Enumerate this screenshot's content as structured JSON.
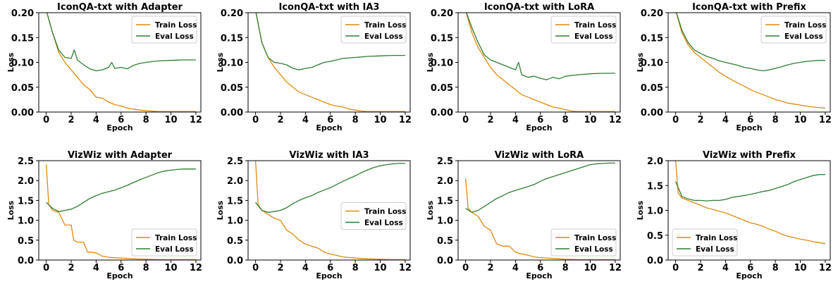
{
  "chart_data": [
    {
      "type": "line",
      "title": "IconQA-txt with Adapter",
      "xlabel": "Epoch",
      "ylabel": "Loss",
      "xlim": [
        -0.6,
        12.4
      ],
      "ylim": [
        0,
        0.2
      ],
      "xticks": [
        "0",
        "2",
        "4",
        "6",
        "8",
        "10",
        "12"
      ],
      "yticks": [
        "0.00",
        "0.05",
        "0.10",
        "0.15",
        "0.20"
      ],
      "legend_position": "upper-right",
      "series": [
        {
          "name": "Train Loss",
          "color": "#e08a0b",
          "x": [
            0,
            0.5,
            1,
            1.5,
            2,
            2.5,
            3,
            3.5,
            4,
            4.5,
            5,
            5.5,
            6,
            6.5,
            7,
            7.5,
            8,
            8.5,
            9,
            10,
            11,
            12
          ],
          "y": [
            0.205,
            0.16,
            0.12,
            0.1,
            0.085,
            0.07,
            0.055,
            0.045,
            0.03,
            0.028,
            0.02,
            0.015,
            0.012,
            0.008,
            0.006,
            0.004,
            0.003,
            0.002,
            0.001,
            0.001,
            0.001,
            0.001
          ]
        },
        {
          "name": "Eval Loss",
          "color": "#2e7d32",
          "x": [
            0,
            0.5,
            1,
            1.5,
            2,
            2.25,
            2.5,
            3,
            3.5,
            4,
            4.5,
            5,
            5.25,
            5.5,
            6,
            6.5,
            7,
            7.5,
            8,
            9,
            10,
            11,
            12
          ],
          "y": [
            0.205,
            0.16,
            0.125,
            0.11,
            0.108,
            0.125,
            0.105,
            0.095,
            0.087,
            0.083,
            0.085,
            0.09,
            0.1,
            0.088,
            0.09,
            0.087,
            0.094,
            0.098,
            0.1,
            0.103,
            0.104,
            0.105,
            0.105
          ]
        }
      ]
    },
    {
      "type": "line",
      "title": "IconQA-txt with IA3",
      "xlabel": "Epoch",
      "ylabel": "Loss",
      "xlim": [
        -0.6,
        12.4
      ],
      "ylim": [
        0,
        0.2
      ],
      "xticks": [
        "0",
        "2",
        "4",
        "6",
        "8",
        "10",
        "12"
      ],
      "yticks": [
        "0.00",
        "0.05",
        "0.10",
        "0.15",
        "0.20"
      ],
      "legend_position": "upper-right",
      "series": [
        {
          "name": "Train Loss",
          "color": "#e08a0b",
          "x": [
            0,
            0.5,
            1,
            1.5,
            2,
            2.5,
            3,
            3.5,
            4,
            4.5,
            5,
            5.5,
            6,
            6.5,
            7,
            7.5,
            8,
            8.5,
            9,
            10,
            11,
            12
          ],
          "y": [
            0.205,
            0.14,
            0.11,
            0.09,
            0.075,
            0.06,
            0.05,
            0.04,
            0.035,
            0.03,
            0.025,
            0.02,
            0.015,
            0.012,
            0.01,
            0.006,
            0.004,
            0.002,
            0.001,
            0.001,
            0.001,
            0.001
          ]
        },
        {
          "name": "Eval Loss",
          "color": "#2e7d32",
          "x": [
            0,
            0.5,
            1,
            1.5,
            2,
            2.5,
            3,
            3.5,
            4,
            4.5,
            5,
            5.5,
            6,
            6.5,
            7,
            8,
            9,
            10,
            11,
            12
          ],
          "y": [
            0.205,
            0.14,
            0.11,
            0.1,
            0.098,
            0.095,
            0.088,
            0.085,
            0.088,
            0.09,
            0.095,
            0.1,
            0.102,
            0.105,
            0.108,
            0.11,
            0.112,
            0.113,
            0.114,
            0.114
          ]
        }
      ]
    },
    {
      "type": "line",
      "title": "IconQA-txt with LoRA",
      "xlabel": "Epoch",
      "ylabel": "Loss",
      "xlim": [
        -0.6,
        12.4
      ],
      "ylim": [
        0,
        0.2
      ],
      "xticks": [
        "0",
        "2",
        "4",
        "6",
        "8",
        "10",
        "12"
      ],
      "yticks": [
        "0.00",
        "0.05",
        "0.10",
        "0.15",
        "0.20"
      ],
      "legend_position": "upper-right",
      "series": [
        {
          "name": "Train Loss",
          "color": "#e08a0b",
          "x": [
            0,
            0.5,
            1,
            1.5,
            2,
            2.5,
            3,
            3.5,
            4,
            4.5,
            5,
            5.5,
            6,
            6.5,
            7,
            7.5,
            8,
            8.5,
            9,
            10,
            11,
            12
          ],
          "y": [
            0.205,
            0.16,
            0.13,
            0.11,
            0.09,
            0.075,
            0.065,
            0.055,
            0.045,
            0.035,
            0.03,
            0.025,
            0.02,
            0.015,
            0.01,
            0.008,
            0.005,
            0.002,
            0.001,
            0.001,
            0.001,
            0.001
          ]
        },
        {
          "name": "Eval Loss",
          "color": "#2e7d32",
          "x": [
            0,
            0.5,
            1,
            1.5,
            2,
            2.5,
            3,
            3.5,
            4,
            4.25,
            4.5,
            5,
            5.5,
            6,
            6.5,
            7,
            7.5,
            8,
            9,
            10,
            11,
            12
          ],
          "y": [
            0.205,
            0.17,
            0.14,
            0.115,
            0.105,
            0.1,
            0.095,
            0.09,
            0.085,
            0.1,
            0.075,
            0.07,
            0.072,
            0.068,
            0.065,
            0.07,
            0.067,
            0.072,
            0.075,
            0.077,
            0.078,
            0.078
          ]
        }
      ]
    },
    {
      "type": "line",
      "title": "IconQA-txt with Prefix",
      "xlabel": "Epoch",
      "ylabel": "Loss",
      "xlim": [
        -0.6,
        12.4
      ],
      "ylim": [
        0,
        0.2
      ],
      "xticks": [
        "0",
        "2",
        "4",
        "6",
        "8",
        "10",
        "12"
      ],
      "yticks": [
        "0.00",
        "0.05",
        "0.10",
        "0.15",
        "0.20"
      ],
      "legend_position": "upper-right",
      "series": [
        {
          "name": "Train Loss",
          "color": "#e08a0b",
          "x": [
            0,
            0.5,
            1,
            1.5,
            2,
            2.5,
            3,
            3.5,
            4,
            4.5,
            5,
            5.5,
            6,
            6.5,
            7,
            7.5,
            8,
            8.5,
            9,
            9.5,
            10,
            10.5,
            11,
            11.5,
            12
          ],
          "y": [
            0.205,
            0.16,
            0.135,
            0.12,
            0.11,
            0.1,
            0.09,
            0.08,
            0.072,
            0.065,
            0.058,
            0.052,
            0.045,
            0.04,
            0.035,
            0.03,
            0.025,
            0.022,
            0.018,
            0.016,
            0.014,
            0.012,
            0.01,
            0.009,
            0.008
          ]
        },
        {
          "name": "Eval Loss",
          "color": "#2e7d32",
          "x": [
            0,
            0.5,
            1,
            1.5,
            2,
            2.5,
            3,
            3.5,
            4,
            4.5,
            5,
            5.5,
            6,
            6.5,
            7,
            7.5,
            8,
            8.5,
            9,
            9.5,
            10,
            10.5,
            11,
            11.5,
            12
          ],
          "y": [
            0.205,
            0.165,
            0.14,
            0.125,
            0.118,
            0.112,
            0.108,
            0.103,
            0.1,
            0.097,
            0.094,
            0.09,
            0.088,
            0.085,
            0.083,
            0.085,
            0.088,
            0.091,
            0.095,
            0.098,
            0.1,
            0.102,
            0.103,
            0.104,
            0.104
          ]
        }
      ]
    },
    {
      "type": "line",
      "title": "VizWiz with Adapter",
      "xlabel": "Epoch",
      "ylabel": "Loss",
      "xlim": [
        -0.6,
        12.4
      ],
      "ylim": [
        0,
        2.5
      ],
      "xticks": [
        "0",
        "2",
        "4",
        "6",
        "8",
        "10",
        "12"
      ],
      "yticks": [
        "0.0",
        "0.5",
        "1.0",
        "1.5",
        "2.0",
        "2.5"
      ],
      "legend_position": "lower-right",
      "series": [
        {
          "name": "Train Loss",
          "color": "#e08a0b",
          "x": [
            0,
            0.2,
            0.5,
            1,
            1.5,
            2,
            2.2,
            2.5,
            3,
            3.3,
            3.5,
            4,
            4.5,
            5,
            6,
            7,
            8,
            9,
            10,
            11,
            12
          ],
          "y": [
            2.4,
            1.4,
            1.25,
            1.2,
            0.88,
            0.88,
            0.5,
            0.45,
            0.45,
            0.2,
            0.2,
            0.18,
            0.1,
            0.07,
            0.05,
            0.03,
            0.02,
            0.01,
            0.01,
            0.01,
            0.01
          ]
        },
        {
          "name": "Eval Loss",
          "color": "#2e7d32",
          "x": [
            0,
            0.5,
            1,
            1.5,
            2,
            2.5,
            3,
            3.5,
            4,
            4.5,
            5,
            5.5,
            6,
            6.5,
            7,
            7.5,
            8,
            8.5,
            9,
            9.5,
            10,
            10.5,
            11,
            11.5,
            12
          ],
          "y": [
            1.45,
            1.3,
            1.22,
            1.25,
            1.28,
            1.35,
            1.45,
            1.55,
            1.62,
            1.68,
            1.72,
            1.76,
            1.82,
            1.88,
            1.95,
            2.02,
            2.08,
            2.14,
            2.2,
            2.24,
            2.26,
            2.28,
            2.29,
            2.29,
            2.29
          ]
        }
      ]
    },
    {
      "type": "line",
      "title": "VizWiz with IA3",
      "xlabel": "Epoch",
      "ylabel": "Loss",
      "xlim": [
        -0.6,
        12.4
      ],
      "ylim": [
        0,
        2.5
      ],
      "xticks": [
        "0",
        "2",
        "4",
        "6",
        "8",
        "10",
        "12"
      ],
      "yticks": [
        "0.0",
        "0.5",
        "1.0",
        "1.5",
        "2.0",
        "2.5"
      ],
      "legend_position": "center-right",
      "series": [
        {
          "name": "Train Loss",
          "color": "#e08a0b",
          "x": [
            0,
            0.2,
            0.5,
            1,
            1.5,
            2,
            2.5,
            3,
            3.5,
            4,
            4.5,
            5,
            5.5,
            6,
            7,
            8,
            9,
            10,
            11,
            12
          ],
          "y": [
            2.5,
            1.4,
            1.25,
            1.15,
            1.05,
            1.0,
            0.75,
            0.65,
            0.5,
            0.4,
            0.35,
            0.3,
            0.2,
            0.15,
            0.08,
            0.05,
            0.03,
            0.02,
            0.01,
            0.01
          ]
        },
        {
          "name": "Eval Loss",
          "color": "#2e7d32",
          "x": [
            0,
            0.5,
            1,
            1.5,
            2,
            2.5,
            3,
            3.5,
            4,
            4.5,
            5,
            5.5,
            6,
            6.5,
            7,
            7.5,
            8,
            8.5,
            9,
            9.5,
            10,
            10.5,
            11,
            11.5,
            12
          ],
          "y": [
            1.45,
            1.25,
            1.2,
            1.22,
            1.25,
            1.32,
            1.42,
            1.5,
            1.57,
            1.62,
            1.7,
            1.76,
            1.82,
            1.9,
            1.98,
            2.05,
            2.12,
            2.2,
            2.27,
            2.33,
            2.37,
            2.4,
            2.42,
            2.43,
            2.43
          ]
        }
      ]
    },
    {
      "type": "line",
      "title": "VizWiz with LoRA",
      "xlabel": "Epoch",
      "ylabel": "Loss",
      "xlim": [
        -0.6,
        12.4
      ],
      "ylim": [
        0,
        2.5
      ],
      "xticks": [
        "0",
        "2",
        "4",
        "6",
        "8",
        "10",
        "12"
      ],
      "yticks": [
        "0.0",
        "0.5",
        "1.0",
        "1.5",
        "2.0",
        "2.5"
      ],
      "legend_position": "lower-right",
      "series": [
        {
          "name": "Train Loss",
          "color": "#e08a0b",
          "x": [
            0,
            0.2,
            0.5,
            1,
            1.5,
            2,
            2.5,
            3,
            3.5,
            4,
            4.5,
            5,
            5.5,
            6,
            7,
            8,
            9,
            10,
            11,
            12
          ],
          "y": [
            2.05,
            1.3,
            1.2,
            1.1,
            0.85,
            0.75,
            0.4,
            0.35,
            0.35,
            0.2,
            0.15,
            0.12,
            0.08,
            0.06,
            0.04,
            0.02,
            0.01,
            0.01,
            0.01,
            0.01
          ]
        },
        {
          "name": "Eval Loss",
          "color": "#2e7d32",
          "x": [
            0,
            0.5,
            1,
            1.5,
            2,
            2.5,
            3,
            3.5,
            4,
            4.5,
            5,
            5.5,
            6,
            6.5,
            7,
            7.5,
            8,
            8.5,
            9,
            9.5,
            10,
            10.5,
            11,
            11.5,
            12
          ],
          "y": [
            1.3,
            1.2,
            1.25,
            1.35,
            1.45,
            1.55,
            1.62,
            1.7,
            1.75,
            1.8,
            1.85,
            1.9,
            1.98,
            2.05,
            2.1,
            2.15,
            2.2,
            2.25,
            2.3,
            2.35,
            2.4,
            2.42,
            2.43,
            2.44,
            2.44
          ]
        }
      ]
    },
    {
      "type": "line",
      "title": "VizWiz with Prefix",
      "xlabel": "Epoch",
      "ylabel": "Loss",
      "xlim": [
        -0.6,
        12.4
      ],
      "ylim": [
        0,
        2.0
      ],
      "xticks": [
        "0",
        "2",
        "4",
        "6",
        "8",
        "10",
        "12"
      ],
      "yticks": [
        "0.0",
        "0.5",
        "1.0",
        "1.5",
        "2.0"
      ],
      "legend_position": "lower-left",
      "series": [
        {
          "name": "Train Loss",
          "color": "#e08a0b",
          "x": [
            0,
            0.2,
            0.5,
            1,
            1.5,
            2,
            2.5,
            3,
            3.5,
            4,
            4.5,
            5,
            5.5,
            6,
            6.5,
            7,
            7.5,
            8,
            8.5,
            9,
            9.5,
            10,
            10.5,
            11,
            11.5,
            12
          ],
          "y": [
            2.0,
            1.35,
            1.25,
            1.2,
            1.15,
            1.1,
            1.05,
            1.02,
            0.98,
            0.95,
            0.9,
            0.85,
            0.8,
            0.75,
            0.72,
            0.68,
            0.62,
            0.58,
            0.52,
            0.48,
            0.45,
            0.42,
            0.4,
            0.37,
            0.35,
            0.33
          ]
        },
        {
          "name": "Eval Loss",
          "color": "#2e7d32",
          "x": [
            0,
            0.5,
            1,
            1.5,
            2,
            2.5,
            3,
            3.5,
            4,
            4.5,
            5,
            5.5,
            6,
            6.5,
            7,
            7.5,
            8,
            8.5,
            9,
            9.5,
            10,
            10.5,
            11,
            11.5,
            12
          ],
          "y": [
            1.58,
            1.28,
            1.23,
            1.2,
            1.2,
            1.19,
            1.2,
            1.2,
            1.22,
            1.26,
            1.28,
            1.3,
            1.32,
            1.35,
            1.38,
            1.4,
            1.44,
            1.48,
            1.52,
            1.58,
            1.62,
            1.66,
            1.7,
            1.72,
            1.72
          ]
        }
      ]
    }
  ]
}
